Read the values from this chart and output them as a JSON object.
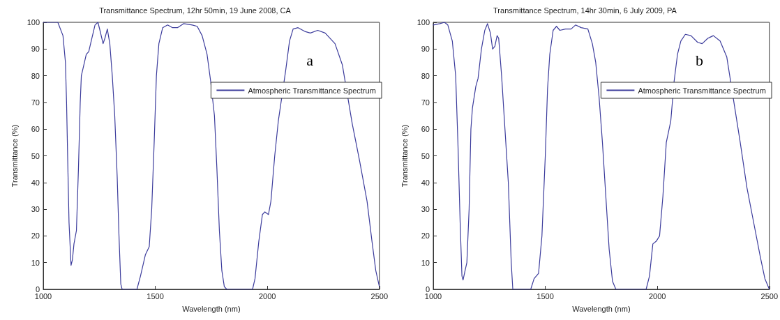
{
  "chart_data": [
    {
      "type": "line",
      "title": "Transmittance Spectrum, 12hr 50min, 19 June 2008, CA",
      "xlabel": "Wavelength (nm)",
      "ylabel": "Transmittance (%)",
      "annotations": [
        "a"
      ],
      "xlim": [
        1000,
        2500
      ],
      "xticks": [
        1000,
        1500,
        2000,
        2500
      ],
      "ylim": [
        0,
        100
      ],
      "yticks": [
        0,
        10,
        20,
        30,
        40,
        50,
        60,
        70,
        80,
        90,
        100
      ],
      "grid": false,
      "legend": "right",
      "marker": "none",
      "line_style": "solid",
      "series": [
        {
          "name": "Atmospheric Transmittance Spectrum",
          "color": "#3c3c9c",
          "x": [
            1000,
            1065,
            1088,
            1099,
            1104,
            1110,
            1115,
            1124,
            1130,
            1137,
            1148,
            1157,
            1165,
            1170,
            1181,
            1192,
            1203,
            1214,
            1231,
            1244,
            1253,
            1267,
            1275,
            1286,
            1297,
            1308,
            1319,
            1330,
            1338,
            1346,
            1352,
            1418,
            1434,
            1456,
            1473,
            1484,
            1495,
            1505,
            1516,
            1533,
            1555,
            1577,
            1599,
            1626,
            1665,
            1687,
            1709,
            1731,
            1747,
            1764,
            1775,
            1786,
            1797,
            1808,
            1819,
            1934,
            1945,
            1962,
            1978,
            1989,
            2005,
            2016,
            2033,
            2049,
            2082,
            2099,
            2115,
            2137,
            2170,
            2192,
            2225,
            2258,
            2302,
            2335,
            2379,
            2412,
            2445,
            2467,
            2484,
            2500
          ],
          "values": [
            100,
            100,
            95,
            85,
            70,
            45,
            25,
            9,
            11,
            17,
            22,
            45,
            70,
            80,
            84,
            88,
            89,
            93,
            99,
            100,
            97,
            92,
            94,
            97.5,
            92,
            80,
            65,
            42,
            20,
            2,
            0,
            0,
            5,
            13,
            16,
            30,
            55,
            80,
            92,
            98,
            99,
            98,
            98,
            99.5,
            99,
            98.5,
            95,
            88,
            78,
            65,
            45,
            22,
            7,
            1,
            0,
            0,
            4,
            18,
            28,
            29,
            28,
            33,
            50,
            63,
            82,
            93,
            97.5,
            98,
            96.5,
            96,
            97,
            96,
            92,
            84,
            62,
            48,
            33,
            18,
            7,
            1
          ]
        }
      ]
    },
    {
      "type": "line",
      "title": "Transmittance Spectrum, 14hr 30min, 6 July 2009, PA",
      "xlabel": "Wavelength (nm)",
      "ylabel": "Transmittance (%)",
      "annotations": [
        "b"
      ],
      "xlim": [
        1000,
        2500
      ],
      "xticks": [
        1000,
        1500,
        2000,
        2500
      ],
      "ylim": [
        0,
        100
      ],
      "yticks": [
        0,
        10,
        20,
        30,
        40,
        50,
        60,
        70,
        80,
        90,
        100
      ],
      "grid": false,
      "legend": "right",
      "marker": "none",
      "line_style": "solid",
      "series": [
        {
          "name": "Atmospheric Transmittance Spectrum",
          "color": "#3c3c9c",
          "x": [
            1000,
            1030,
            1050,
            1065,
            1085,
            1100,
            1110,
            1120,
            1128,
            1133,
            1142,
            1150,
            1160,
            1168,
            1175,
            1190,
            1200,
            1215,
            1230,
            1242,
            1255,
            1265,
            1275,
            1285,
            1292,
            1305,
            1320,
            1335,
            1348,
            1355,
            1435,
            1450,
            1470,
            1485,
            1500,
            1510,
            1520,
            1535,
            1550,
            1565,
            1590,
            1615,
            1635,
            1660,
            1690,
            1710,
            1725,
            1740,
            1755,
            1770,
            1785,
            1800,
            1815,
            1950,
            1965,
            1980,
            1995,
            2010,
            2025,
            2040,
            2060,
            2075,
            2090,
            2105,
            2125,
            2150,
            2180,
            2200,
            2225,
            2250,
            2280,
            2310,
            2370,
            2400,
            2430,
            2460,
            2480,
            2500
          ],
          "values": [
            99,
            99.5,
            100,
            99,
            93,
            80,
            55,
            25,
            5,
            3.5,
            7,
            10,
            30,
            60,
            68,
            76,
            79,
            90,
            97,
            99.5,
            96,
            90,
            91,
            95,
            94,
            80,
            60,
            40,
            10,
            0,
            0,
            4,
            6,
            20,
            50,
            75,
            88,
            97,
            98.5,
            97,
            97.5,
            97.5,
            99,
            98,
            97.5,
            92,
            85,
            72,
            55,
            35,
            15,
            3,
            0,
            0,
            5,
            17,
            18,
            20,
            35,
            55,
            63,
            78,
            88,
            93,
            95.5,
            95,
            92.5,
            92,
            94,
            95,
            93,
            87,
            55,
            38,
            25,
            12,
            4,
            0
          ]
        }
      ]
    }
  ]
}
